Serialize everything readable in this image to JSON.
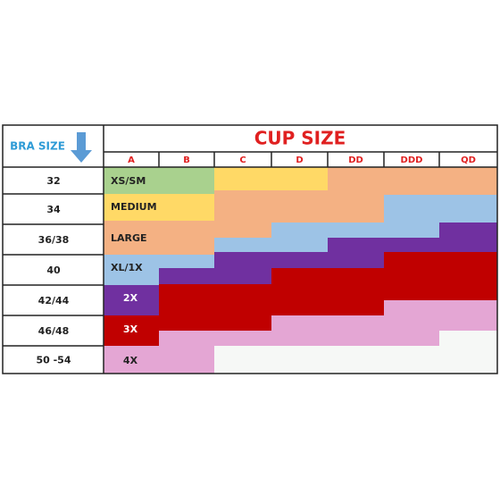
{
  "header": {
    "band_label": "BRA SIZE",
    "cup_label": "CUP SIZE"
  },
  "cups": [
    "A",
    "B",
    "C",
    "D",
    "DD",
    "DDD",
    "QD"
  ],
  "bands": [
    "32",
    "34",
    "36/38",
    "40",
    "42/44",
    "46/48",
    "50 -54"
  ],
  "size_labels": [
    "XS/SM",
    "MEDIUM",
    "LARGE",
    "XL/1X",
    "2X",
    "3X",
    "4X"
  ]
}
